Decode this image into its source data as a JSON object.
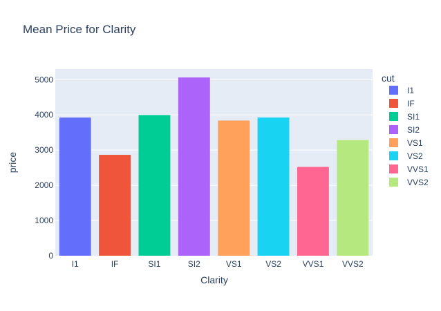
{
  "chart_data": {
    "type": "bar",
    "title": "Mean Price for Clarity",
    "xlabel": "Clarity",
    "ylabel": "price",
    "ylim": [
      0,
      5300
    ],
    "yticks": [
      0,
      1000,
      2000,
      3000,
      4000,
      5000
    ],
    "categories": [
      "I1",
      "IF",
      "SI1",
      "SI2",
      "VS1",
      "VS2",
      "VVS1",
      "VVS2"
    ],
    "values": [
      3924,
      2865,
      3996,
      5063,
      3839,
      3925,
      2523,
      3284
    ],
    "colors": [
      "#636efa",
      "#ef553b",
      "#00cc96",
      "#ab63fa",
      "#ffa15a",
      "#19d3f3",
      "#ff6692",
      "#b6e880"
    ],
    "legend": {
      "title": "cut",
      "position": "right",
      "entries": [
        "I1",
        "IF",
        "SI1",
        "SI2",
        "VS1",
        "VS2",
        "VVS1",
        "VVS2"
      ]
    },
    "grid": true,
    "plot_bgcolor": "#e5ecf6"
  }
}
